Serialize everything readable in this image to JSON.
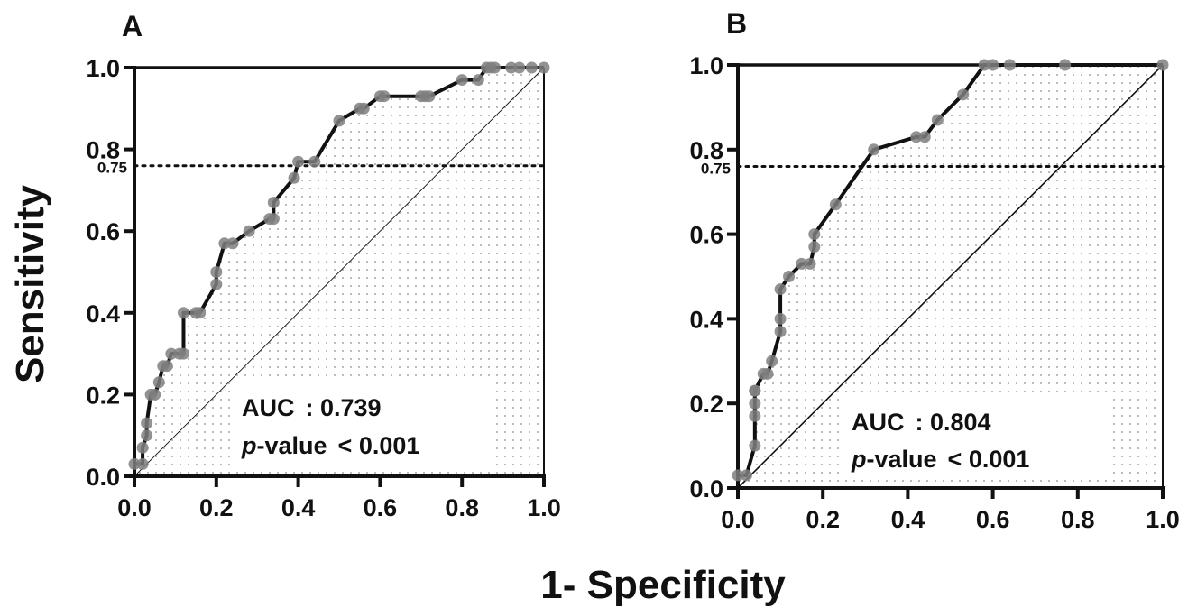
{
  "figure": {
    "ylabel": "Sensitivity",
    "xlabel": "1- Specificity"
  },
  "chart_data": [
    {
      "type": "line",
      "panel_label": "A",
      "xlim": [
        0,
        1
      ],
      "ylim": [
        0,
        1
      ],
      "xticks": [
        "0.0",
        "0.2",
        "0.4",
        "0.6",
        "0.8",
        "1.0"
      ],
      "yticks": [
        "0.0",
        "0.2",
        "0.4",
        "0.6",
        "0.8",
        "1.0"
      ],
      "reference_line": {
        "label": "0.75",
        "y": 0.76
      },
      "annotation": {
        "auc_label": "AUC",
        "auc_value": ": 0.739",
        "p_prefix": "p",
        "p_suffix": "-value",
        "p_value": "< 0.001"
      },
      "x": [
        0,
        0.02,
        0.02,
        0.03,
        0.03,
        0.04,
        0.05,
        0.06,
        0.07,
        0.08,
        0.09,
        0.11,
        0.12,
        0.12,
        0.15,
        0.16,
        0.2,
        0.2,
        0.22,
        0.24,
        0.28,
        0.33,
        0.34,
        0.34,
        0.39,
        0.4,
        0.44,
        0.5,
        0.55,
        0.56,
        0.6,
        0.61,
        0.7,
        0.71,
        0.72,
        0.8,
        0.84,
        0.86,
        0.87,
        0.88,
        0.92,
        0.94,
        0.97,
        1.0
      ],
      "y": [
        0.03,
        0.03,
        0.07,
        0.1,
        0.13,
        0.2,
        0.2,
        0.23,
        0.27,
        0.27,
        0.3,
        0.3,
        0.3,
        0.4,
        0.4,
        0.4,
        0.47,
        0.5,
        0.57,
        0.57,
        0.6,
        0.63,
        0.63,
        0.67,
        0.73,
        0.77,
        0.77,
        0.87,
        0.9,
        0.9,
        0.93,
        0.93,
        0.93,
        0.93,
        0.93,
        0.97,
        0.97,
        1.0,
        1.0,
        1.0,
        1.0,
        1.0,
        1.0,
        1.0
      ]
    },
    {
      "type": "line",
      "panel_label": "B",
      "xlim": [
        0,
        1
      ],
      "ylim": [
        0,
        1
      ],
      "xticks": [
        "0.0",
        "0.2",
        "0.4",
        "0.6",
        "0.8",
        "1.0"
      ],
      "yticks": [
        "0.0",
        "0.2",
        "0.4",
        "0.6",
        "0.8",
        "1.0"
      ],
      "reference_line": {
        "label": "0.75",
        "y": 0.76
      },
      "annotation": {
        "auc_label": "AUC",
        "auc_value": ": 0.804",
        "p_prefix": "p",
        "p_suffix": "-value",
        "p_value": "< 0.001"
      },
      "x": [
        0,
        0.02,
        0.04,
        0.04,
        0.04,
        0.04,
        0.04,
        0.06,
        0.07,
        0.08,
        0.1,
        0.1,
        0.1,
        0.12,
        0.15,
        0.17,
        0.18,
        0.18,
        0.23,
        0.32,
        0.42,
        0.44,
        0.47,
        0.53,
        0.58,
        0.6,
        0.64,
        0.77,
        1.0
      ],
      "y": [
        0.03,
        0.03,
        0.1,
        0.17,
        0.2,
        0.23,
        0.23,
        0.27,
        0.27,
        0.3,
        0.37,
        0.4,
        0.47,
        0.5,
        0.53,
        0.53,
        0.57,
        0.6,
        0.67,
        0.8,
        0.83,
        0.83,
        0.87,
        0.93,
        1.0,
        1.0,
        1.0,
        1.0,
        1.0
      ]
    }
  ]
}
